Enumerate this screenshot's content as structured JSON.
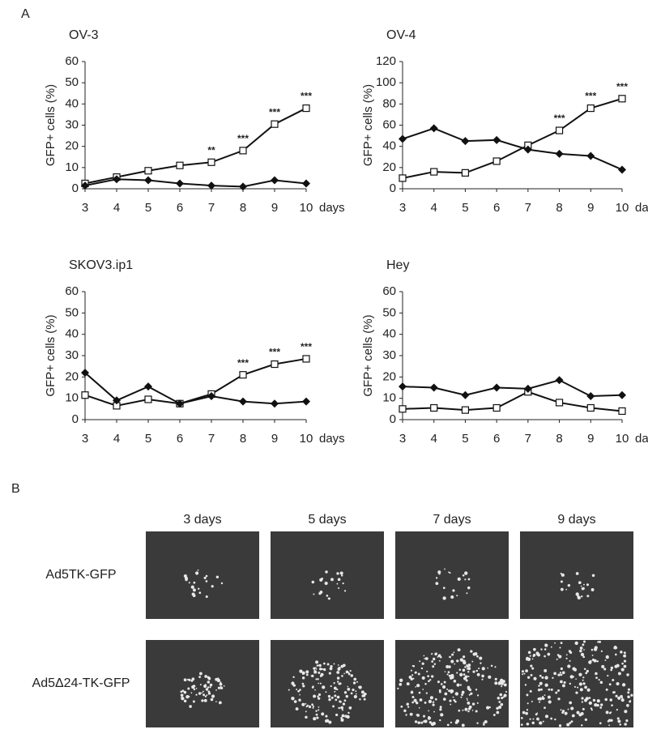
{
  "panel_labels": [
    "A",
    "B"
  ],
  "chart_data": [
    {
      "type": "line",
      "title": "OV-3",
      "y_label": "GFP+ cells (%)",
      "x_label": "days",
      "x": [
        3,
        4,
        5,
        6,
        7,
        8,
        9,
        10
      ],
      "xlim": [
        3,
        10
      ],
      "xticks": [
        3,
        4,
        5,
        6,
        7,
        8,
        9,
        10
      ],
      "ylim": [
        0,
        60
      ],
      "yticks": [
        0,
        10,
        20,
        30,
        40,
        50,
        60
      ],
      "series": [
        {
          "marker": "square",
          "color": "#111111",
          "values": [
            2.5,
            5.5,
            8.5,
            11,
            12.5,
            18,
            30.5,
            38
          ]
        },
        {
          "marker": "diamond",
          "color": "#111111",
          "values": [
            1.5,
            4.5,
            4,
            2.5,
            1.5,
            1,
            4,
            2.5
          ]
        }
      ],
      "annotations": [
        {
          "x": 7,
          "text": "**"
        },
        {
          "x": 8,
          "text": "***"
        },
        {
          "x": 9,
          "text": "***"
        },
        {
          "x": 10,
          "text": "***"
        }
      ]
    },
    {
      "type": "line",
      "title": "OV-4",
      "y_label": "GFP+ cells (%)",
      "x_label": "days",
      "x": [
        3,
        4,
        5,
        6,
        7,
        8,
        9,
        10
      ],
      "xlim": [
        3,
        10
      ],
      "xticks": [
        3,
        4,
        5,
        6,
        7,
        8,
        9,
        10
      ],
      "ylim": [
        0,
        120
      ],
      "yticks": [
        0,
        20,
        40,
        60,
        80,
        100,
        120
      ],
      "series": [
        {
          "marker": "square",
          "color": "#111111",
          "values": [
            10,
            16,
            15,
            26,
            41,
            55,
            76,
            85
          ]
        },
        {
          "marker": "diamond",
          "color": "#111111",
          "values": [
            47,
            57,
            45,
            46,
            37,
            33,
            31,
            18
          ]
        }
      ],
      "annotations": [
        {
          "x": 8,
          "text": "***"
        },
        {
          "x": 9,
          "text": "***"
        },
        {
          "x": 10,
          "text": "***"
        }
      ]
    },
    {
      "type": "line",
      "title": "SKOV3.ip1",
      "y_label": "GFP+ cells (%)",
      "x_label": "days",
      "x": [
        3,
        4,
        5,
        6,
        7,
        8,
        9,
        10
      ],
      "xlim": [
        3,
        10
      ],
      "xticks": [
        3,
        4,
        5,
        6,
        7,
        8,
        9,
        10
      ],
      "ylim": [
        0,
        60
      ],
      "yticks": [
        0,
        10,
        20,
        30,
        40,
        50,
        60
      ],
      "series": [
        {
          "marker": "square",
          "color": "#111111",
          "values": [
            11.5,
            6.5,
            9.5,
            7.5,
            12,
            21,
            26,
            28.5
          ]
        },
        {
          "marker": "diamond",
          "color": "#111111",
          "values": [
            22,
            9,
            15.5,
            7.5,
            11,
            8.5,
            7.5,
            8.5
          ]
        }
      ],
      "annotations": [
        {
          "x": 8,
          "text": "***"
        },
        {
          "x": 9,
          "text": "***"
        },
        {
          "x": 10,
          "text": "***"
        }
      ]
    },
    {
      "type": "line",
      "title": "Hey",
      "y_label": "GFP+ cells (%)",
      "x_label": "days",
      "x": [
        3,
        4,
        5,
        6,
        7,
        8,
        9,
        10
      ],
      "xlim": [
        3,
        10
      ],
      "xticks": [
        3,
        4,
        5,
        6,
        7,
        8,
        9,
        10
      ],
      "ylim": [
        0,
        60
      ],
      "yticks": [
        0,
        10,
        20,
        30,
        40,
        50,
        60
      ],
      "series": [
        {
          "marker": "square",
          "color": "#111111",
          "values": [
            5,
            5.5,
            4.5,
            5.5,
            13,
            8,
            5.5,
            4
          ]
        },
        {
          "marker": "diamond",
          "color": "#111111",
          "values": [
            15.5,
            15,
            11.5,
            15,
            14.5,
            18.5,
            11,
            11.5
          ]
        }
      ],
      "annotations": []
    }
  ],
  "images": {
    "columns": [
      "3 days",
      "5 days",
      "7 days",
      "9 days"
    ],
    "rows": [
      "Ad5TK-GFP",
      "Ad5Δ24-TK-GFP"
    ]
  }
}
